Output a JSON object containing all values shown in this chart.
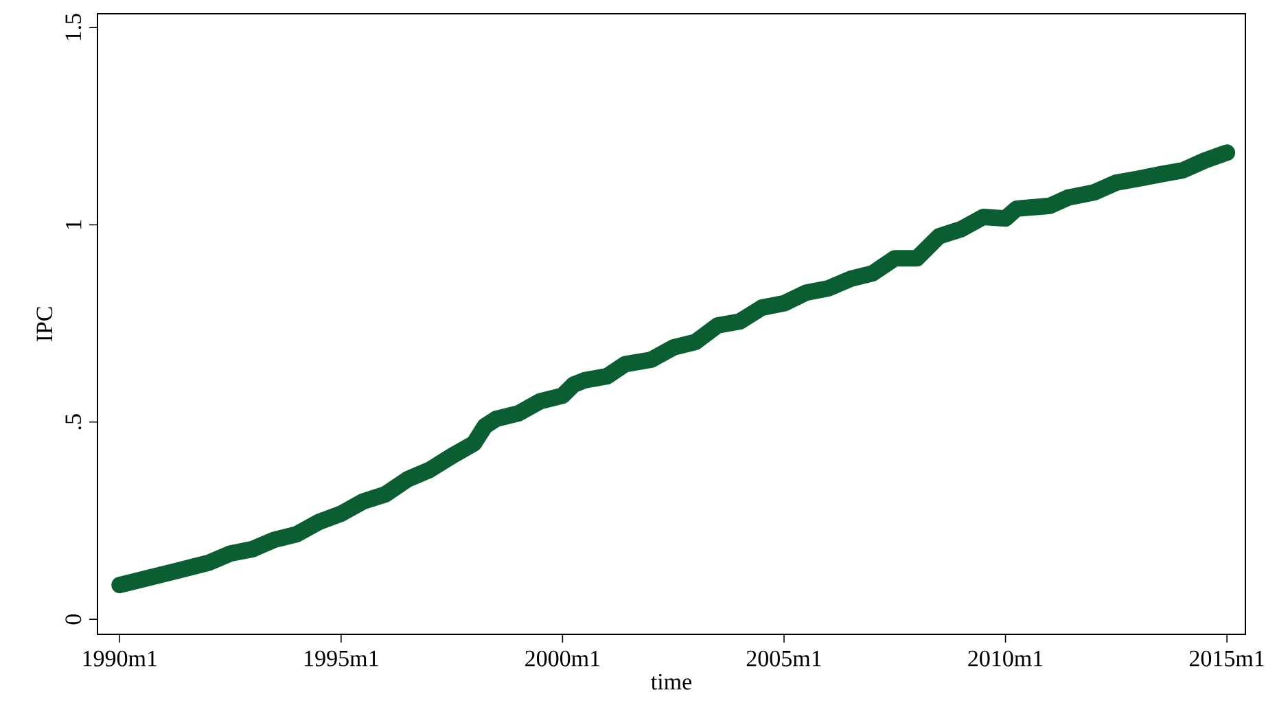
{
  "chart_data": {
    "type": "line",
    "xlabel": "time",
    "ylabel": "IPC",
    "x": [
      "1990-01",
      "1991-01",
      "1992-01",
      "1992-07",
      "1993-01",
      "1993-07",
      "1994-01",
      "1994-07",
      "1995-01",
      "1995-07",
      "1996-01",
      "1996-07",
      "1997-01",
      "1997-07",
      "1998-01",
      "1998-04",
      "1998-07",
      "1999-01",
      "1999-07",
      "2000-01",
      "2000-04",
      "2000-07",
      "2001-01",
      "2001-06",
      "2002-01",
      "2002-07",
      "2003-01",
      "2003-07",
      "2004-01",
      "2004-07",
      "2005-01",
      "2005-07",
      "2006-01",
      "2006-07",
      "2007-01",
      "2007-07",
      "2008-01",
      "2008-07",
      "2009-01",
      "2009-07",
      "2010-01",
      "2010-04",
      "2011-01",
      "2011-06",
      "2012-01",
      "2012-07",
      "2013-01",
      "2013-07",
      "2014-01",
      "2014-07",
      "2015-01"
    ],
    "series": [
      {
        "color": "#0b5e31",
        "values": [
          0.087,
          0.115,
          0.143,
          0.167,
          0.178,
          0.202,
          0.216,
          0.247,
          0.268,
          0.299,
          0.317,
          0.355,
          0.379,
          0.414,
          0.446,
          0.49,
          0.508,
          0.522,
          0.553,
          0.567,
          0.595,
          0.606,
          0.616,
          0.647,
          0.658,
          0.689,
          0.703,
          0.745,
          0.755,
          0.79,
          0.801,
          0.828,
          0.839,
          0.863,
          0.877,
          0.915,
          0.915,
          0.971,
          0.989,
          1.02,
          1.016,
          1.041,
          1.048,
          1.069,
          1.082,
          1.107,
          1.117,
          1.128,
          1.138,
          1.163,
          1.183
        ]
      }
    ],
    "xlim": [
      "1989-07",
      "2015-06"
    ],
    "ylim": [
      -0.038,
      1.535
    ],
    "xticks": [
      {
        "value": "1990-01",
        "label": "1990m1"
      },
      {
        "value": "1995-01",
        "label": "1995m1"
      },
      {
        "value": "2000-01",
        "label": "2000m1"
      },
      {
        "value": "2005-01",
        "label": "2005m1"
      },
      {
        "value": "2010-01",
        "label": "2010m1"
      },
      {
        "value": "2015-01",
        "label": "2015m1"
      }
    ],
    "yticks": [
      0,
      {
        "value": 0.5,
        "label": ".5"
      },
      1,
      1.5
    ],
    "marker": "none",
    "line_style": "solid"
  }
}
